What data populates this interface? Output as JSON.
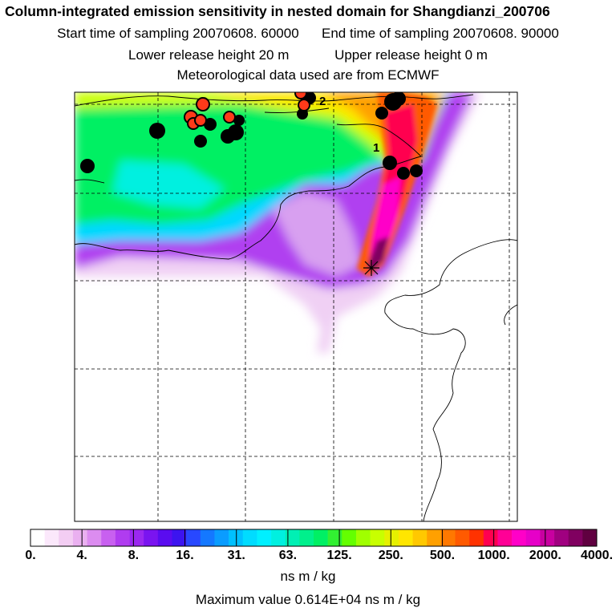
{
  "header": {
    "title": "Column-integrated emission sensitivity in nested domain for Shangdianzi_200706",
    "start_label": "Start time of sampling 20070608. 60000",
    "end_label": "End time of sampling 20070608. 90000",
    "lower_label": "Lower release height   20 m",
    "upper_label": "Upper release height    0 m",
    "met_label": "Meteorological data used are from ECMWF"
  },
  "map": {
    "release_markers": [
      {
        "label": "1"
      },
      {
        "label": "2"
      }
    ],
    "colors": {
      "land_outline": "#000000",
      "gridline": "#000000",
      "fire_point_red": "#ff3a1a",
      "fire_point_black": "#000000"
    }
  },
  "colorbar": {
    "labels": [
      "0.",
      "4.",
      "8.",
      "16.",
      "31.",
      "63.",
      "125.",
      "250.",
      "500.",
      "1000.",
      "2000.",
      "4000."
    ],
    "colors": [
      "#ffffff",
      "#fbe8fb",
      "#f3cdf3",
      "#eab0f0",
      "#dc8cf0",
      "#c860f0",
      "#b03cf0",
      "#9b28f0",
      "#7a14f0",
      "#5a0cf0",
      "#3c14f0",
      "#2848ff",
      "#1478ff",
      "#0a9cff",
      "#00c0ff",
      "#00dcff",
      "#00f0ff",
      "#00f0e0",
      "#00f0b4",
      "#00f08c",
      "#00f064",
      "#32f032",
      "#64ff00",
      "#a0ff00",
      "#c8ff00",
      "#e6f000",
      "#ffe600",
      "#ffc800",
      "#ffa000",
      "#ff7800",
      "#ff5a00",
      "#ff3200",
      "#ff0050",
      "#ff0096",
      "#ff00c8",
      "#e600c8",
      "#c800a0",
      "#a00080",
      "#800060",
      "#600040"
    ],
    "units": "ns m / kg"
  },
  "footer": {
    "max_value": "Maximum value  0.614E+04 ns m / kg"
  }
}
